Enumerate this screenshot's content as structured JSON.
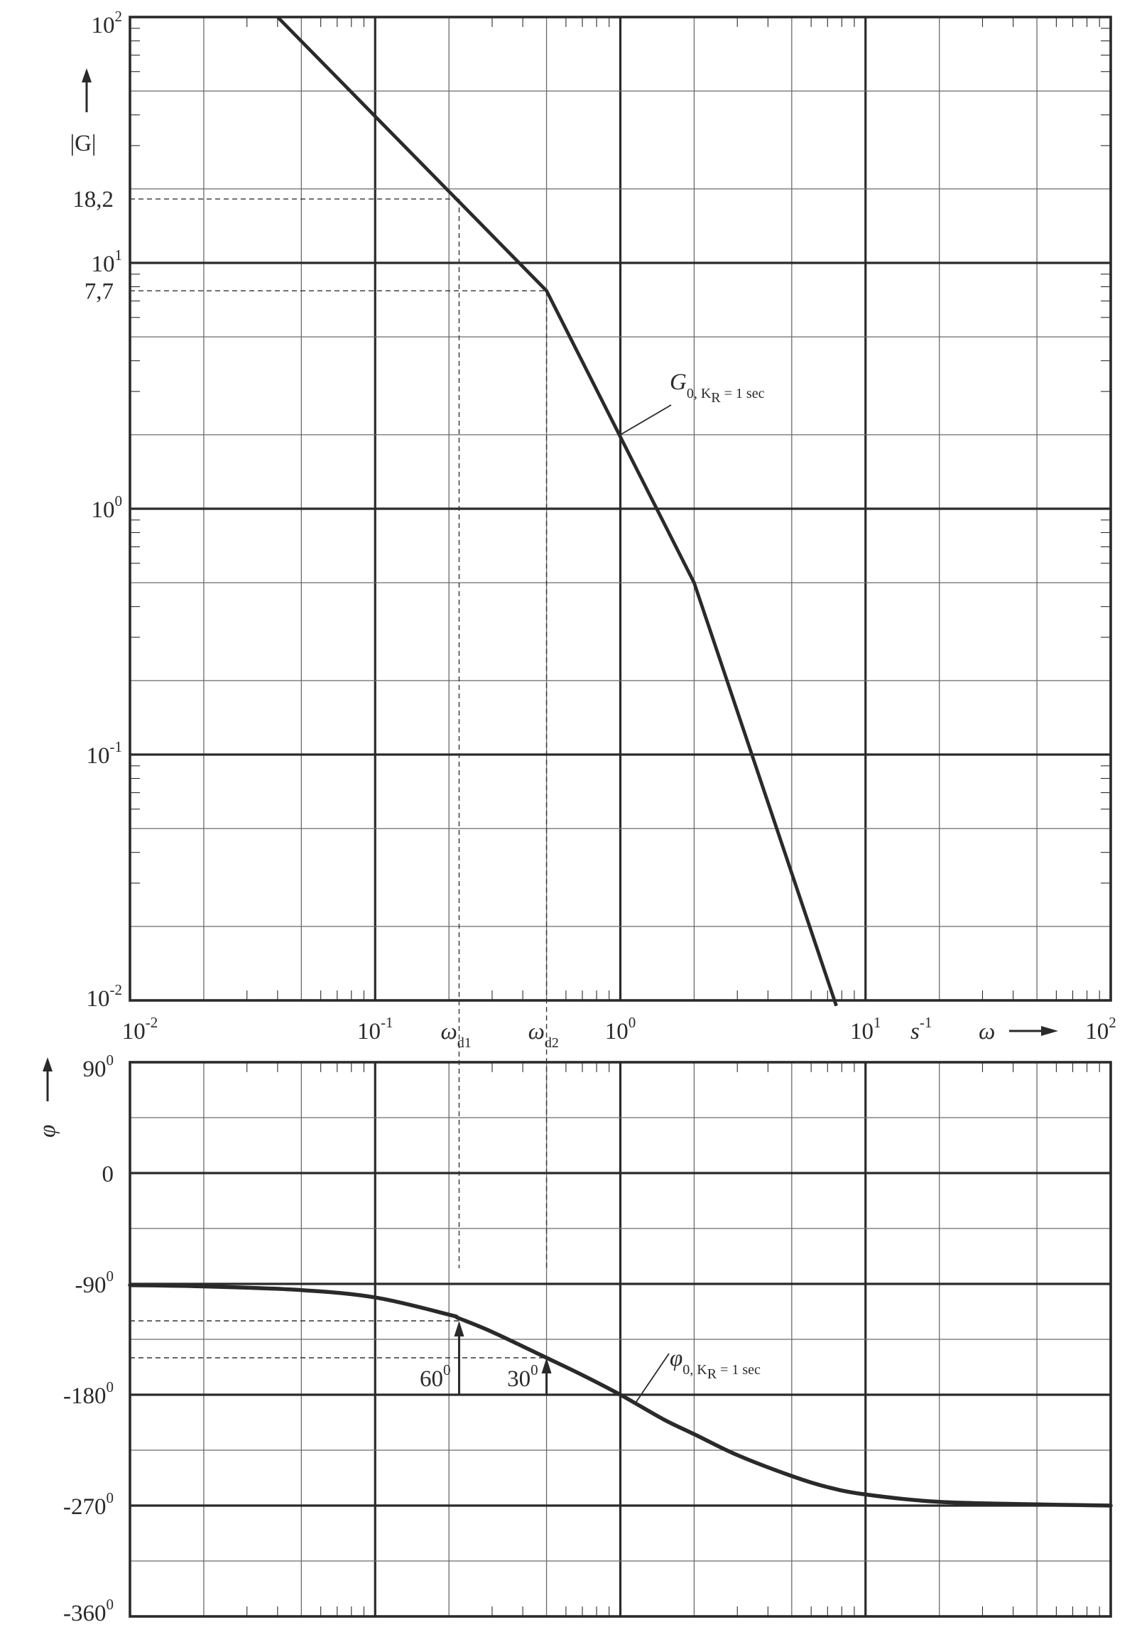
{
  "chart_data": [
    {
      "type": "line",
      "plot": "magnitude",
      "xscale": "log",
      "yscale": "log",
      "xlim": [
        0.01,
        100
      ],
      "ylim": [
        0.01,
        100
      ],
      "xlabel": "ω",
      "xunit": "s",
      "xunit_sup": "-1",
      "ylabel": "|G|",
      "grid": true,
      "x_ticks": [
        {
          "base": "10",
          "exp": "-2"
        },
        {
          "base": "10",
          "exp": "-1"
        },
        {
          "base": "10",
          "exp": "0"
        },
        {
          "base": "10",
          "exp": "1"
        },
        {
          "base": "10",
          "exp": "2"
        }
      ],
      "y_ticks": [
        {
          "value": 100,
          "base": "10",
          "exp": "2"
        },
        {
          "value": 10,
          "base": "10",
          "exp": "1"
        },
        {
          "value": 1,
          "base": "10",
          "exp": "0"
        },
        {
          "value": 0.1,
          "base": "10",
          "exp": "-1"
        },
        {
          "value": 0.01,
          "base": "10",
          "exp": "-2"
        }
      ],
      "extra_y_labels": [
        {
          "value": 18.2,
          "text": "18,2"
        },
        {
          "value": 7.7,
          "text": "7,7"
        }
      ],
      "series": [
        {
          "name": "G₀, K_R = 1 sec",
          "x": [
            0.04,
            0.5,
            2.0,
            7.6
          ],
          "y": [
            100,
            7.7,
            0.5,
            0.0095
          ]
        }
      ],
      "annotation": {
        "label_main": "G",
        "label_sub": "0, K",
        "label_subsub": "R",
        "label_tail": " = 1 sec",
        "x": 1.0,
        "y": 2.0
      },
      "markers": [
        {
          "label": "ω",
          "sub": "d1",
          "x": 0.22,
          "y": 18.2
        },
        {
          "label": "ω",
          "sub": "d2",
          "x": 0.5,
          "y": 7.7
        }
      ]
    },
    {
      "type": "line",
      "plot": "phase",
      "xscale": "log",
      "xlim": [
        0.01,
        100
      ],
      "ylim": [
        -360,
        90
      ],
      "ylabel": "φ",
      "grid": true,
      "y_ticks": [
        {
          "value": 90,
          "text": "90",
          "sup": "0"
        },
        {
          "value": 0,
          "text": "0",
          "sup": ""
        },
        {
          "value": -90,
          "text": "-90",
          "sup": "0"
        },
        {
          "value": -180,
          "text": "-180",
          "sup": "0"
        },
        {
          "value": -270,
          "text": "-270",
          "sup": "0"
        },
        {
          "value": -360,
          "text": "-360",
          "sup": "0"
        }
      ],
      "series": [
        {
          "name": "φ₀, K_R = 1 sec",
          "x": [
            0.01,
            0.02,
            0.05,
            0.1,
            0.2,
            0.22,
            0.3,
            0.5,
            0.7,
            1.0,
            1.5,
            2.0,
            3.0,
            5.0,
            7.0,
            10.0,
            20.0,
            50.0,
            100.0
          ],
          "y": [
            -91,
            -92,
            -95,
            -101,
            -115,
            -118,
            -129,
            -150,
            -164,
            -180,
            -200,
            -212,
            -229,
            -246,
            -255,
            -261,
            -267,
            -269,
            -270
          ]
        }
      ],
      "annotation": {
        "label_main": "φ",
        "label_sub": "0, K",
        "label_subsub": "R",
        "label_tail": " = 1 sec",
        "x": 1.15,
        "y": -187
      },
      "margins": [
        {
          "text": "60",
          "sup": "0",
          "x": 0.22,
          "y_from": -180,
          "y_to": -120
        },
        {
          "text": "30",
          "sup": "0",
          "x": 0.5,
          "y_from": -180,
          "y_to": -150
        }
      ]
    }
  ]
}
